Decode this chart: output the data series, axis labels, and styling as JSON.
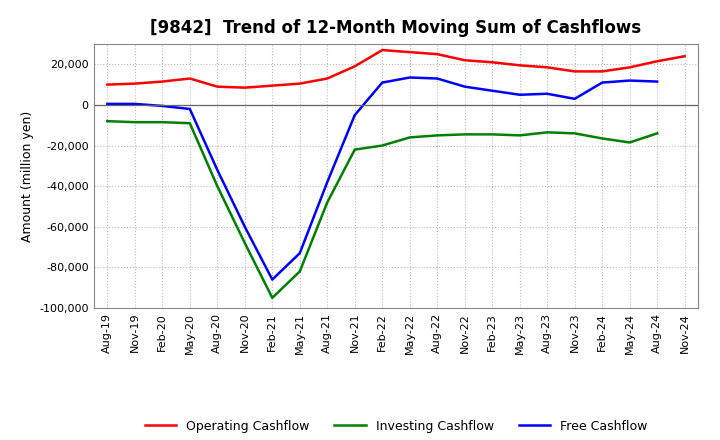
{
  "title": "[9842]  Trend of 12-Month Moving Sum of Cashflows",
  "ylabel": "Amount (million yen)",
  "ylim": [
    -100000,
    30000
  ],
  "yticks": [
    -100000,
    -80000,
    -60000,
    -40000,
    -20000,
    0,
    20000
  ],
  "background_color": "#ffffff",
  "plot_bg_color": "#ffffff",
  "grid_color": "#bbbbbb",
  "labels": [
    "Aug-19",
    "Nov-19",
    "Feb-20",
    "May-20",
    "Aug-20",
    "Nov-20",
    "Feb-21",
    "May-21",
    "Aug-21",
    "Nov-21",
    "Feb-22",
    "May-22",
    "Aug-22",
    "Nov-22",
    "Feb-23",
    "May-23",
    "Aug-23",
    "Nov-23",
    "Feb-24",
    "May-24",
    "Aug-24",
    "Nov-24"
  ],
  "operating": [
    10000,
    10500,
    11500,
    13000,
    9000,
    8500,
    9500,
    10500,
    13000,
    19000,
    27000,
    26000,
    25000,
    22000,
    21000,
    19500,
    18500,
    16500,
    16500,
    18500,
    21500,
    24000
  ],
  "investing": [
    -8000,
    -8500,
    -8500,
    -9000,
    -40000,
    -68000,
    -95000,
    -82000,
    -48000,
    -22000,
    -20000,
    -16000,
    -15000,
    -14500,
    -14500,
    -15000,
    -13500,
    -14000,
    -16500,
    -18500,
    -14000,
    null
  ],
  "free": [
    500,
    500,
    -500,
    -2000,
    -32000,
    -60000,
    -86000,
    -73000,
    -38000,
    -5000,
    11000,
    13500,
    13000,
    9000,
    7000,
    5000,
    5500,
    3000,
    11000,
    12000,
    11500,
    null
  ],
  "operating_color": "#ff0000",
  "investing_color": "#008000",
  "free_color": "#0000ff",
  "line_width": 1.8,
  "title_fontsize": 12,
  "tick_fontsize": 8,
  "ylabel_fontsize": 9,
  "legend_fontsize": 9
}
